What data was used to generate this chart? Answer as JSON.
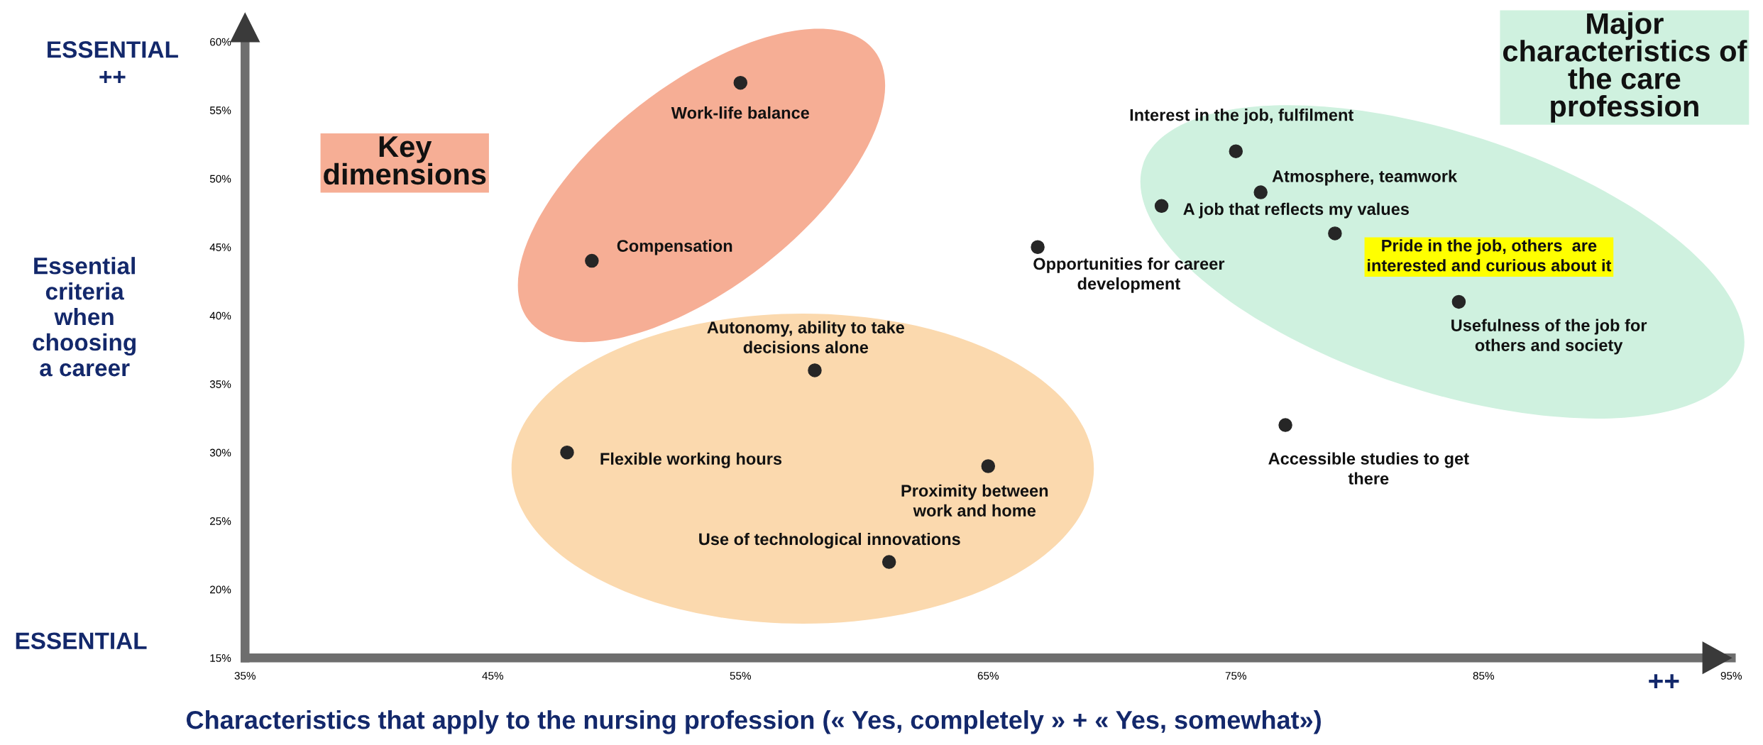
{
  "chart_data": {
    "type": "scatter",
    "xlabel": "Characteristics that apply to the nursing profession (« Yes, completely » + « Yes, somewhat»)",
    "ylabel": "Essential\ncriteria\nwhen\nchoosing\na career",
    "x": [
      55,
      49,
      58,
      48,
      65,
      61,
      67,
      75,
      76,
      72,
      79,
      84,
      77
    ],
    "values": [
      57,
      44,
      36,
      30,
      29,
      22,
      45,
      52,
      49,
      48,
      46,
      41,
      32
    ],
    "color": "#262626",
    "marker": "circle",
    "grid": false,
    "legend": false,
    "xlim": [
      35,
      95
    ],
    "ylim": [
      15,
      60
    ],
    "xticks": [
      {
        "value": 35,
        "label": "35%"
      },
      {
        "value": 45,
        "label": "45%"
      },
      {
        "value": 55,
        "label": "55%"
      },
      {
        "value": 65,
        "label": "65%"
      },
      {
        "value": 75,
        "label": "75%"
      },
      {
        "value": 85,
        "label": "85%"
      },
      {
        "value": 95,
        "label": "95%"
      }
    ],
    "yticks": [
      {
        "value": 15,
        "label": "15%"
      },
      {
        "value": 20,
        "label": "20%"
      },
      {
        "value": 25,
        "label": "25%"
      },
      {
        "value": 30,
        "label": "30%"
      },
      {
        "value": 35,
        "label": "35%"
      },
      {
        "value": 40,
        "label": "40%"
      },
      {
        "value": 45,
        "label": "45%"
      },
      {
        "value": 50,
        "label": "50%"
      },
      {
        "value": 55,
        "label": "55%"
      },
      {
        "value": 60,
        "label": "60%"
      }
    ],
    "annotations": [
      {
        "text": "Work-life balance",
        "x": 55,
        "y": 57
      },
      {
        "text": "Compensation",
        "x": 49,
        "y": 44
      },
      {
        "text": "Autonomy, ability to take\ndecisions alone",
        "x": 58,
        "y": 36
      },
      {
        "text": "Flexible working hours",
        "x": 48,
        "y": 30
      },
      {
        "text": "Proximity between\nwork and home",
        "x": 65,
        "y": 29
      },
      {
        "text": "Use of technological innovations",
        "x": 61,
        "y": 22
      },
      {
        "text": "Opportunities for career\ndevelopment",
        "x": 67,
        "y": 45
      },
      {
        "text": "Interest in the job, fulfilment",
        "x": 75,
        "y": 52
      },
      {
        "text": "Atmosphere, teamwork",
        "x": 76,
        "y": 49
      },
      {
        "text": "A job that reflects my values",
        "x": 72,
        "y": 48
      },
      {
        "text": "Pride in the job, others  are\ninterested and curious about it",
        "x": 79,
        "y": 46
      },
      {
        "text": "Usefulness of the job for\nothers and society",
        "x": 84,
        "y": 41
      },
      {
        "text": "Accessible studies to get\nthere",
        "x": 77,
        "y": 32
      },
      "Key\ndimensions",
      "Major\ncharacteristics of\nthe care\nprofession",
      "ESSENTIAL\n++",
      "ESSENTIAL",
      "++"
    ]
  }
}
